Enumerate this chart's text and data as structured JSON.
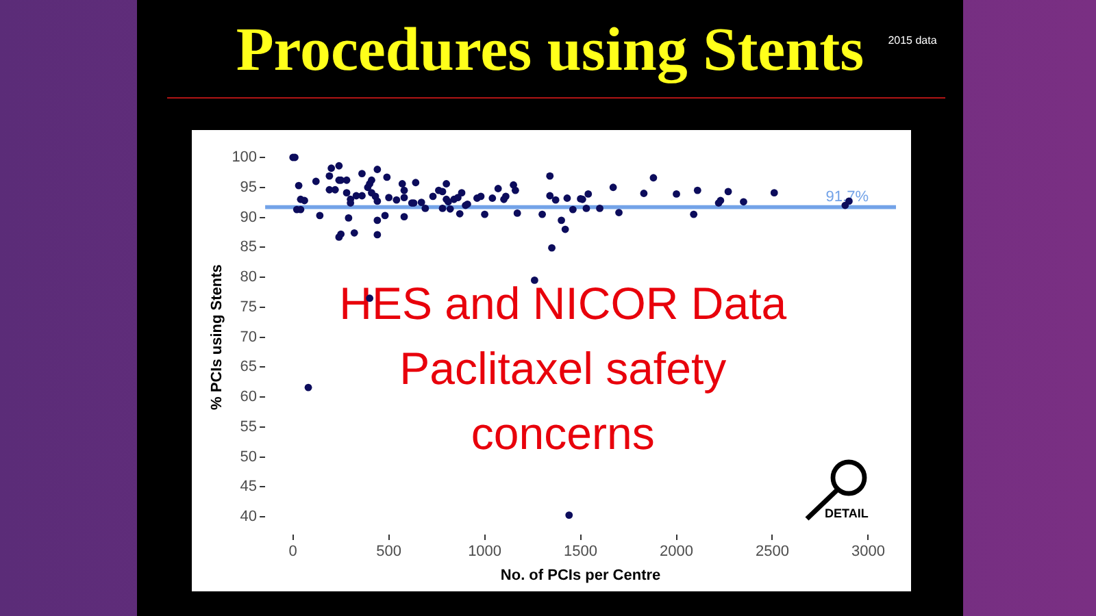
{
  "chart_data": {
    "type": "scatter",
    "title": "Procedures using Stents",
    "xlabel": "No. of PCIs per Centre",
    "ylabel": "% PCIs using Stents",
    "x": [
      0,
      10,
      30,
      40,
      60,
      20,
      40,
      140,
      120,
      190,
      200,
      240,
      190,
      220,
      240,
      250,
      280,
      250,
      240,
      290,
      280,
      300,
      300,
      320,
      330,
      360,
      360,
      390,
      400,
      410,
      410,
      430,
      440,
      440,
      440,
      440,
      490,
      480,
      500,
      540,
      570,
      580,
      580,
      580,
      640,
      620,
      630,
      670,
      690,
      730,
      760,
      780,
      780,
      800,
      800,
      810,
      820,
      840,
      860,
      870,
      880,
      900,
      910,
      960,
      980,
      1000,
      1040,
      1070,
      1100,
      1110,
      1150,
      1160,
      1170,
      1300,
      1340,
      1340,
      1350,
      1370,
      1400,
      1420,
      1430,
      1460,
      1500,
      1510,
      1540,
      1530,
      1600,
      1670,
      1700,
      1830,
      1880,
      2000,
      2090,
      2110,
      2220,
      2230,
      2270,
      2350,
      2510,
      2880,
      2900,
      400,
      1260,
      80,
      1440
    ],
    "values": [
      100,
      100,
      95.3,
      93,
      92.8,
      91.3,
      91.3,
      90.3,
      96,
      96.9,
      98.2,
      98.6,
      94.6,
      94.6,
      96.2,
      96.2,
      96.2,
      87.2,
      86.7,
      89.9,
      94.1,
      93,
      92.4,
      87.4,
      93.6,
      97.3,
      93.6,
      95,
      95.6,
      94.1,
      96.2,
      93.5,
      92.7,
      98,
      89.5,
      87.1,
      96.7,
      90.3,
      93.3,
      92.9,
      95.6,
      94.5,
      90.1,
      93.3,
      95.8,
      92.4,
      92.4,
      92.5,
      91.5,
      93.5,
      94.5,
      94.3,
      91.5,
      95.6,
      93,
      92.6,
      91.4,
      93,
      93.3,
      90.6,
      94.1,
      92,
      92.2,
      93.2,
      93.5,
      90.5,
      93.2,
      94.8,
      93,
      93.5,
      95.4,
      94.5,
      90.7,
      90.5,
      96.9,
      93.6,
      84.9,
      92.9,
      89.5,
      88,
      93.2,
      91.3,
      93.1,
      93,
      93.9,
      91.5,
      91.5,
      95,
      90.8,
      94,
      96.6,
      93.9,
      90.5,
      94.5,
      92.4,
      92.8,
      94.3,
      92.6,
      94.1,
      92,
      92.7,
      76.5,
      79.5,
      61.6,
      40.3
    ],
    "color": "#0c0c5c",
    "marker": "circle",
    "xlim": [
      -145,
      3145
    ],
    "xticks": [
      0,
      500,
      1000,
      1500,
      2000,
      2500,
      3000
    ],
    "ylim": [
      40,
      100
    ],
    "yticks": [
      40,
      45,
      50,
      55,
      60,
      65,
      70,
      75,
      80,
      85,
      90,
      95,
      100
    ],
    "ref_lines": [
      {
        "axis": "y",
        "value": 91.7,
        "label": "91.7%",
        "color": "#73a3e8"
      }
    ],
    "annotations": [
      "2015 data",
      "HES and NICOR Data",
      "Paclitaxel safety",
      "concerns",
      "DETAIL"
    ]
  }
}
